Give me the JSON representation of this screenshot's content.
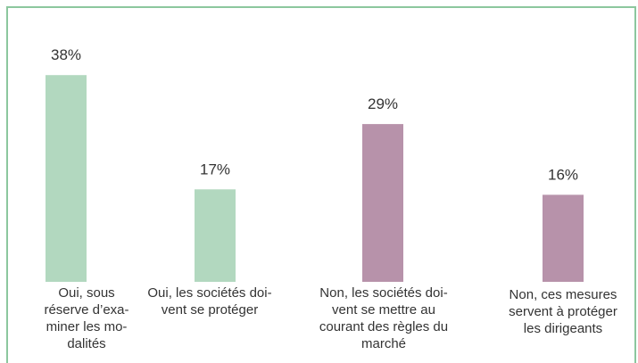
{
  "chart_data": {
    "type": "bar",
    "categories": [
      "Oui, sous\nréserve d’exa-\nminer les mo-\ndalités",
      "Oui, les sociétés doi-\nvent se protéger",
      "Non, les sociétés doi-\nvent se mettre au\ncourant des règles du\nmarché",
      "Non, ces mesures\nservent à protéger\nles dirigeants"
    ],
    "values": [
      38,
      17,
      29,
      16
    ],
    "value_labels": [
      "38%",
      "17%",
      "29%",
      "16%"
    ],
    "colors": [
      "#b2d8bf",
      "#b2d8bf",
      "#b792aa",
      "#b792aa"
    ]
  }
}
